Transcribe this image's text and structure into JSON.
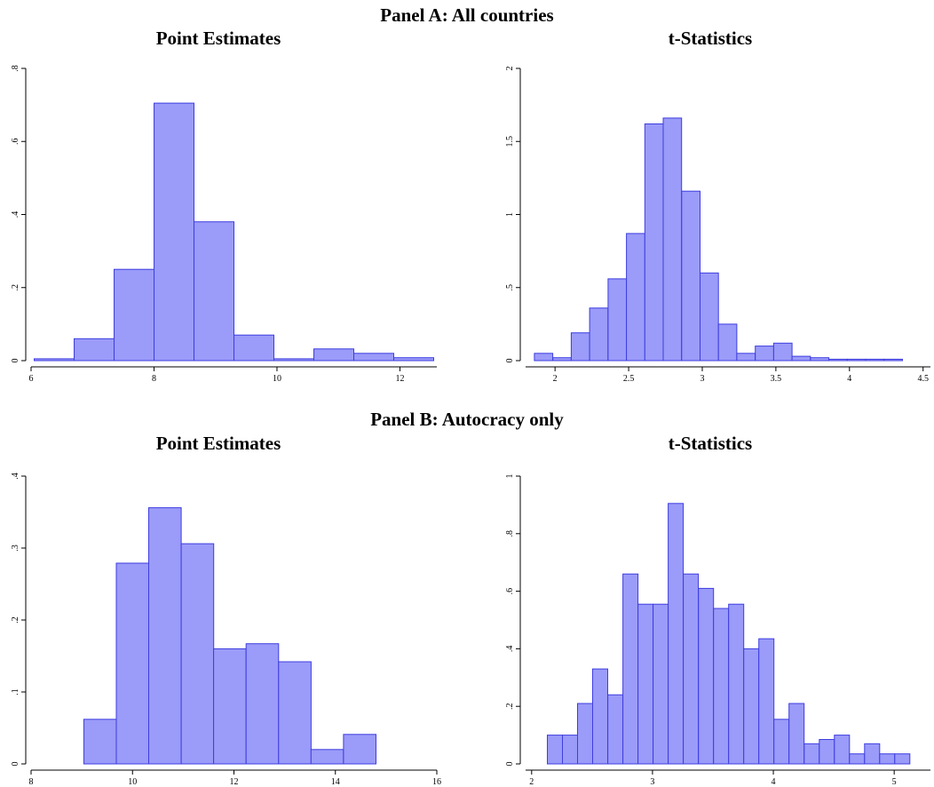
{
  "panels": [
    {
      "title": "Panel A: All countries"
    },
    {
      "title": "Panel B: Autocracy only"
    }
  ],
  "chart_data": [
    {
      "type": "bar",
      "title": "Point Estimates",
      "panel": "Panel A: All countries",
      "xlim": [
        6,
        12.6
      ],
      "ylim": [
        0,
        0.8
      ],
      "xticks": [
        6,
        8,
        10,
        12
      ],
      "xtick_labels": [
        "6",
        "8",
        "10",
        "12"
      ],
      "yticks": [
        0,
        0.2,
        0.4,
        0.6,
        0.8
      ],
      "ytick_labels": [
        "0",
        ".2",
        ".4",
        ".6",
        ".8"
      ],
      "bin_edges": [
        6.05,
        6.7,
        7.35,
        8.0,
        8.65,
        9.3,
        9.95,
        10.6,
        11.25,
        11.9,
        12.55
      ],
      "values": [
        0.005,
        0.06,
        0.25,
        0.705,
        0.38,
        0.07,
        0.005,
        0.032,
        0.02,
        0.008
      ]
    },
    {
      "type": "bar",
      "title": "t-Statistics",
      "panel": "Panel A: All countries",
      "xlim": [
        1.8,
        4.55
      ],
      "ylim": [
        0,
        2
      ],
      "xticks": [
        2,
        2.5,
        3,
        3.5,
        4,
        4.5
      ],
      "xtick_labels": [
        "2",
        "2.5",
        "3",
        "3.5",
        "4",
        "4.5"
      ],
      "yticks": [
        0,
        0.5,
        1,
        1.5,
        2
      ],
      "ytick_labels": [
        "0",
        ".5",
        "1",
        "1.5",
        "2"
      ],
      "bin_edges": [
        1.86,
        1.985,
        2.11,
        2.235,
        2.36,
        2.485,
        2.61,
        2.735,
        2.86,
        2.985,
        3.11,
        3.235,
        3.36,
        3.485,
        3.61,
        3.735,
        3.86,
        3.985,
        4.11,
        4.235,
        4.36
      ],
      "values": [
        0.05,
        0.02,
        0.19,
        0.36,
        0.56,
        0.87,
        1.62,
        1.66,
        1.16,
        0.6,
        0.25,
        0.05,
        0.1,
        0.12,
        0.03,
        0.02,
        0.01,
        0.01,
        0.01,
        0.01
      ]
    },
    {
      "type": "bar",
      "title": "Point Estimates",
      "panel": "Panel B: Autocracy only",
      "xlim": [
        8,
        16
      ],
      "ylim": [
        0,
        0.4
      ],
      "xticks": [
        8,
        10,
        12,
        14,
        16
      ],
      "xtick_labels": [
        "8",
        "10",
        "12",
        "14",
        "16"
      ],
      "yticks": [
        0,
        0.1,
        0.2,
        0.3,
        0.4
      ],
      "ytick_labels": [
        "0",
        ".1",
        ".2",
        ".3",
        ".4"
      ],
      "bin_edges": [
        9.04,
        9.68,
        10.32,
        10.96,
        11.6,
        12.24,
        12.88,
        13.52,
        14.16,
        14.8
      ],
      "values": [
        0.062,
        0.279,
        0.356,
        0.306,
        0.16,
        0.167,
        0.142,
        0.02,
        0.041
      ]
    },
    {
      "type": "bar",
      "title": "t-Statistics",
      "panel": "Panel B: Autocracy only",
      "xlim": [
        1.95,
        5.3
      ],
      "ylim": [
        0,
        1
      ],
      "xticks": [
        2,
        3,
        4,
        5
      ],
      "xtick_labels": [
        "2",
        "3",
        "4",
        "5"
      ],
      "yticks": [
        0,
        0.2,
        0.4,
        0.6,
        0.8,
        1
      ],
      "ytick_labels": [
        "0",
        ".2",
        ".4",
        ".6",
        ".8",
        "1"
      ],
      "bin_edges": [
        2.13,
        2.255,
        2.38,
        2.505,
        2.63,
        2.755,
        2.88,
        3.005,
        3.13,
        3.255,
        3.38,
        3.505,
        3.63,
        3.755,
        3.88,
        4.005,
        4.13,
        4.255,
        4.38,
        4.505,
        4.63,
        4.755,
        4.88,
        5.005,
        5.13,
        5.255
      ],
      "values": [
        0.1,
        0.1,
        0.21,
        0.33,
        0.24,
        0.66,
        0.555,
        0.555,
        0.905,
        0.66,
        0.61,
        0.54,
        0.555,
        0.4,
        0.435,
        0.155,
        0.21,
        0.07,
        0.085,
        0.1,
        0.035,
        0.07,
        0.035,
        0.035,
        0
      ]
    }
  ]
}
